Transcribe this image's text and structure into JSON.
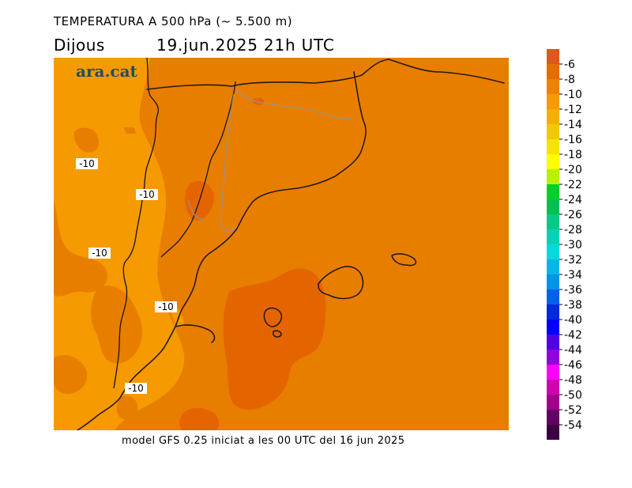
{
  "header": {
    "title": "TEMPERATURA A 500 hPa (~ 5.500 m)",
    "day": "Dijous",
    "date": "19.jun.2025 21h UTC"
  },
  "footer": {
    "text": "model GFS 0.25 iniciat a les 00 UTC del 16 jun 2025"
  },
  "logo": {
    "text": "ara.cat"
  },
  "map": {
    "contour_labels": [
      "-10",
      "-10",
      "-10",
      "-10",
      "-10"
    ],
    "fill_colors": {
      "cold": "#f59a00",
      "mid": "#e87e00",
      "warm": "#e46500"
    }
  },
  "legend": {
    "levels": [
      "-6",
      "-8",
      "-10",
      "-12",
      "-14",
      "-16",
      "-18",
      "-20",
      "-22",
      "-24",
      "-26",
      "-28",
      "-30",
      "-32",
      "-34",
      "-36",
      "-38",
      "-40",
      "-42",
      "-44",
      "-46",
      "-48",
      "-50",
      "-52",
      "-54"
    ],
    "colors": [
      "#e0561c",
      "#e66c00",
      "#ed8200",
      "#f59a00",
      "#f4b000",
      "#f2c800",
      "#f4e400",
      "#ffff00",
      "#b8f000",
      "#00d02c",
      "#00c050",
      "#00cc88",
      "#00d4b4",
      "#00dcdc",
      "#00b8e8",
      "#0094e8",
      "#0060f0",
      "#0028e0",
      "#0000ff",
      "#5000e8",
      "#9000e0",
      "#ff00ff",
      "#d000b0",
      "#a0008c",
      "#640064",
      "#3c0040"
    ]
  }
}
